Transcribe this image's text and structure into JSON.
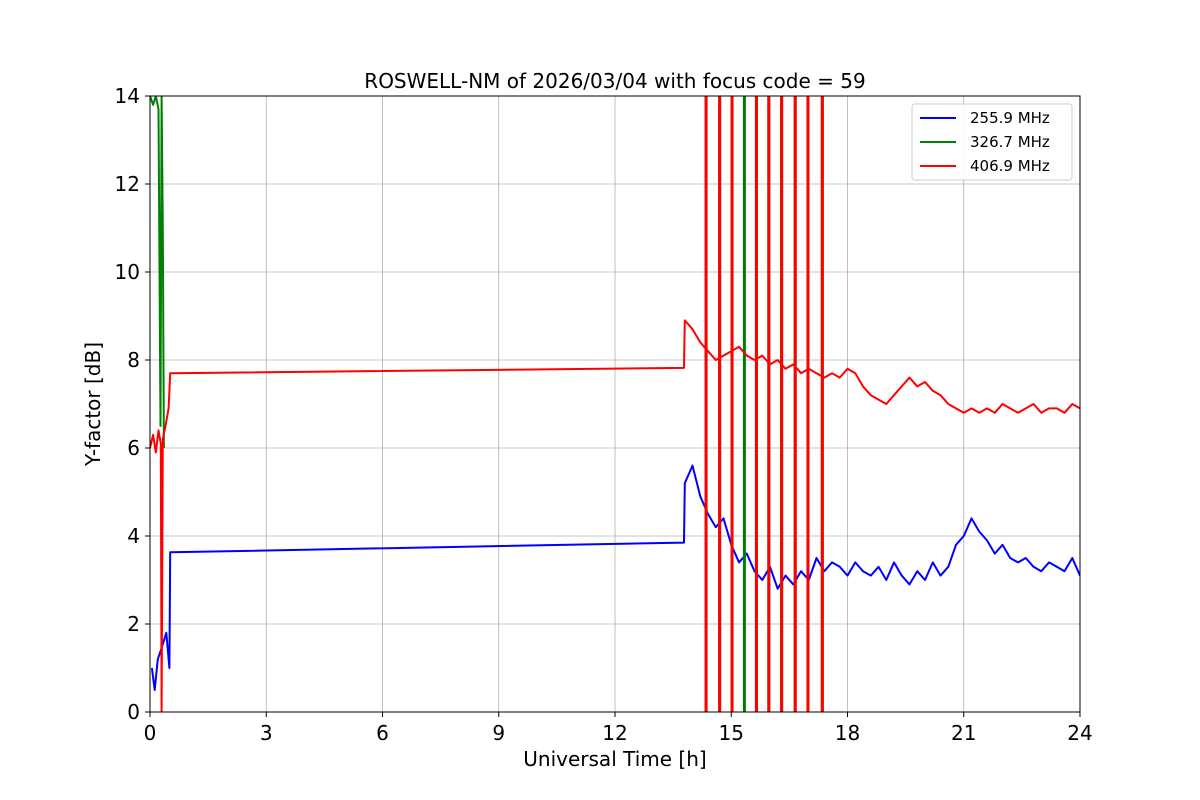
{
  "chart_data": {
    "type": "line",
    "title": "ROSWELL-NM of 2026/03/04 with focus code = 59",
    "xlabel": "Universal Time [h]",
    "ylabel": "Y-factor [dB]",
    "xlim": [
      0,
      24
    ],
    "ylim": [
      0,
      14
    ],
    "xticks": [
      0,
      3,
      6,
      9,
      12,
      15,
      18,
      21,
      24
    ],
    "yticks": [
      0,
      2,
      4,
      6,
      8,
      10,
      12,
      14
    ],
    "grid": true,
    "legend_position": "top-right",
    "series": [
      {
        "name": "255.9 MHz",
        "color": "#0000ff",
        "points": [
          [
            0.05,
            1.0
          ],
          [
            0.12,
            0.5
          ],
          [
            0.2,
            1.2
          ],
          [
            0.28,
            1.4
          ],
          [
            0.35,
            1.6
          ],
          [
            0.42,
            1.8
          ],
          [
            0.5,
            1.0
          ],
          [
            0.52,
            3.63
          ],
          [
            13.78,
            3.85
          ],
          [
            13.8,
            5.2
          ],
          [
            14.0,
            5.6
          ],
          [
            14.2,
            4.9
          ],
          [
            14.4,
            4.5
          ],
          [
            14.6,
            4.2
          ],
          [
            14.8,
            4.4
          ],
          [
            15.0,
            3.8
          ],
          [
            15.2,
            3.4
          ],
          [
            15.4,
            3.6
          ],
          [
            15.6,
            3.2
          ],
          [
            15.8,
            3.0
          ],
          [
            16.0,
            3.3
          ],
          [
            16.2,
            2.8
          ],
          [
            16.4,
            3.1
          ],
          [
            16.6,
            2.9
          ],
          [
            16.8,
            3.2
          ],
          [
            17.0,
            3.0
          ],
          [
            17.2,
            3.5
          ],
          [
            17.4,
            3.2
          ],
          [
            17.6,
            3.4
          ],
          [
            17.8,
            3.3
          ],
          [
            18.0,
            3.1
          ],
          [
            18.2,
            3.4
          ],
          [
            18.4,
            3.2
          ],
          [
            18.6,
            3.1
          ],
          [
            18.8,
            3.3
          ],
          [
            19.0,
            3.0
          ],
          [
            19.2,
            3.4
          ],
          [
            19.4,
            3.1
          ],
          [
            19.6,
            2.9
          ],
          [
            19.8,
            3.2
          ],
          [
            20.0,
            3.0
          ],
          [
            20.2,
            3.4
          ],
          [
            20.4,
            3.1
          ],
          [
            20.6,
            3.3
          ],
          [
            20.8,
            3.8
          ],
          [
            21.0,
            4.0
          ],
          [
            21.2,
            4.4
          ],
          [
            21.4,
            4.1
          ],
          [
            21.6,
            3.9
          ],
          [
            21.8,
            3.6
          ],
          [
            22.0,
            3.8
          ],
          [
            22.2,
            3.5
          ],
          [
            22.4,
            3.4
          ],
          [
            22.6,
            3.5
          ],
          [
            22.8,
            3.3
          ],
          [
            23.0,
            3.2
          ],
          [
            23.2,
            3.4
          ],
          [
            23.4,
            3.3
          ],
          [
            23.6,
            3.2
          ],
          [
            23.8,
            3.5
          ],
          [
            24.0,
            3.1
          ]
        ]
      },
      {
        "name": "326.7 MHz",
        "color": "#008000",
        "points": [
          [
            0.0,
            14.0
          ],
          [
            0.08,
            13.8
          ],
          [
            0.15,
            14.0
          ],
          [
            0.22,
            13.7
          ],
          [
            0.27,
            6.5
          ],
          [
            0.3,
            14.0
          ],
          [
            0.33,
            11.0
          ],
          [
            0.36,
            6.0
          ]
        ],
        "spikes": [
          14.35,
          14.7,
          15.02,
          15.34,
          15.65,
          15.97,
          16.3,
          16.65,
          16.98,
          17.35
        ]
      },
      {
        "name": "406.9 MHz",
        "color": "#ff0000",
        "points": [
          [
            0.0,
            6.0
          ],
          [
            0.08,
            6.3
          ],
          [
            0.15,
            5.9
          ],
          [
            0.22,
            6.4
          ],
          [
            0.28,
            6.1
          ],
          [
            0.3,
            0.0
          ],
          [
            0.33,
            6.2
          ],
          [
            0.4,
            6.5
          ],
          [
            0.48,
            6.9
          ],
          [
            0.52,
            7.7
          ],
          [
            13.78,
            7.82
          ],
          [
            13.8,
            8.9
          ],
          [
            14.0,
            8.7
          ],
          [
            14.2,
            8.4
          ],
          [
            14.4,
            8.2
          ],
          [
            14.6,
            8.0
          ],
          [
            14.8,
            8.1
          ],
          [
            15.0,
            8.2
          ],
          [
            15.2,
            8.3
          ],
          [
            15.4,
            8.1
          ],
          [
            15.6,
            8.0
          ],
          [
            15.8,
            8.1
          ],
          [
            16.0,
            7.9
          ],
          [
            16.2,
            8.0
          ],
          [
            16.4,
            7.8
          ],
          [
            16.6,
            7.9
          ],
          [
            16.8,
            7.7
          ],
          [
            17.0,
            7.8
          ],
          [
            17.2,
            7.7
          ],
          [
            17.4,
            7.6
          ],
          [
            17.6,
            7.7
          ],
          [
            17.8,
            7.6
          ],
          [
            18.0,
            7.8
          ],
          [
            18.2,
            7.7
          ],
          [
            18.4,
            7.4
          ],
          [
            18.6,
            7.2
          ],
          [
            18.8,
            7.1
          ],
          [
            19.0,
            7.0
          ],
          [
            19.2,
            7.2
          ],
          [
            19.4,
            7.4
          ],
          [
            19.6,
            7.6
          ],
          [
            19.8,
            7.4
          ],
          [
            20.0,
            7.5
          ],
          [
            20.2,
            7.3
          ],
          [
            20.4,
            7.2
          ],
          [
            20.6,
            7.0
          ],
          [
            20.8,
            6.9
          ],
          [
            21.0,
            6.8
          ],
          [
            21.2,
            6.9
          ],
          [
            21.4,
            6.8
          ],
          [
            21.6,
            6.9
          ],
          [
            21.8,
            6.8
          ],
          [
            22.0,
            7.0
          ],
          [
            22.2,
            6.9
          ],
          [
            22.4,
            6.8
          ],
          [
            22.6,
            6.9
          ],
          [
            22.8,
            7.0
          ],
          [
            23.0,
            6.8
          ],
          [
            23.2,
            6.9
          ],
          [
            23.4,
            6.9
          ],
          [
            23.6,
            6.8
          ],
          [
            23.8,
            7.0
          ],
          [
            24.0,
            6.9
          ]
        ],
        "spikes": [
          14.35,
          14.7,
          15.02,
          15.65,
          15.97,
          16.3,
          16.65,
          16.98,
          17.35
        ]
      }
    ]
  }
}
